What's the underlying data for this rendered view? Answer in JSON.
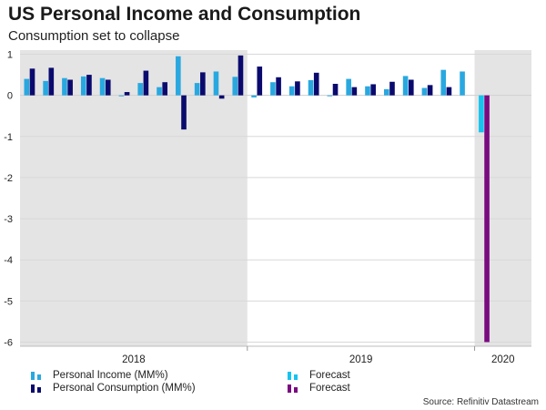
{
  "title": "US Personal Income and Consumption",
  "subtitle": "Consumption set to collapse",
  "source": "Source: Refinitiv Datastream",
  "colors": {
    "income": "#29a8e0",
    "consumption": "#0a0a6e",
    "income_forecast": "#15c3ef",
    "consumption_forecast": "#7a0a80",
    "shade": "#e4e4e4",
    "grid": "#d8d8d8"
  },
  "legend": [
    {
      "label": "Personal Income (MM%)",
      "color": "#29a8e0"
    },
    {
      "label": "Forecast",
      "color": "#15c3ef"
    },
    {
      "label": "Personal Consumption (MM%)",
      "color": "#0a0a6e"
    },
    {
      "label": "Forecast",
      "color": "#7a0a80"
    }
  ],
  "chart_data": {
    "type": "bar",
    "title": "US Personal Income and Consumption",
    "subtitle": "Consumption set to collapse",
    "ylim": [
      -6.1,
      1.1
    ],
    "yticks": [
      1,
      0,
      -1,
      -2,
      -3,
      -4,
      -5,
      -6
    ],
    "x_groups": [
      "2018",
      "2019",
      "2020"
    ],
    "shaded_years": [
      "2018",
      "2020"
    ],
    "categories": [
      "2018-01",
      "2018-02",
      "2018-03",
      "2018-04",
      "2018-05",
      "2018-06",
      "2018-07",
      "2018-08",
      "2018-09",
      "2018-10",
      "2018-11",
      "2018-12",
      "2019-01",
      "2019-02",
      "2019-03",
      "2019-04",
      "2019-05",
      "2019-06",
      "2019-07",
      "2019-08",
      "2019-09",
      "2019-10",
      "2019-11",
      "2019-12",
      "2020-01",
      "2020-02",
      "2020-03"
    ],
    "series": [
      {
        "name": "Personal Income (MM%)",
        "values": [
          0.4,
          0.35,
          0.42,
          0.46,
          0.42,
          0.0,
          0.3,
          0.2,
          0.95,
          0.3,
          0.58,
          0.45,
          -0.05,
          0.32,
          0.22,
          0.37,
          0.0,
          0.4,
          0.22,
          0.15,
          0.47,
          0.18,
          0.62,
          0.58,
          null,
          null,
          null
        ]
      },
      {
        "name": "Personal Consumption (MM%)",
        "values": [
          0.65,
          0.67,
          0.38,
          0.5,
          0.38,
          0.08,
          0.6,
          0.32,
          -0.83,
          0.56,
          -0.08,
          0.97,
          0.7,
          0.44,
          0.34,
          0.55,
          0.28,
          0.2,
          0.27,
          0.33,
          0.38,
          0.25,
          0.2,
          null,
          null,
          null,
          null
        ]
      },
      {
        "name": "Forecast (Income)",
        "values": [
          null,
          null,
          null,
          null,
          null,
          null,
          null,
          null,
          null,
          null,
          null,
          null,
          null,
          null,
          null,
          null,
          null,
          null,
          null,
          null,
          null,
          null,
          null,
          null,
          -0.9,
          null,
          null
        ]
      },
      {
        "name": "Forecast (Consumption)",
        "values": [
          null,
          null,
          null,
          null,
          null,
          null,
          null,
          null,
          null,
          null,
          null,
          null,
          null,
          null,
          null,
          null,
          null,
          null,
          null,
          null,
          null,
          null,
          null,
          null,
          -6.0,
          null,
          null
        ]
      }
    ]
  }
}
